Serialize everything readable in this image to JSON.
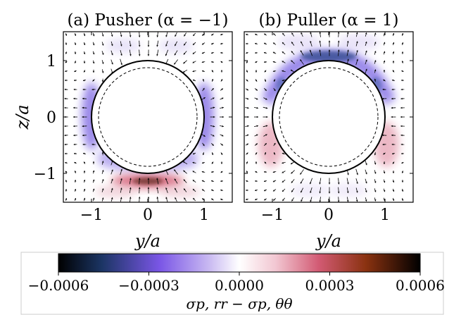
{
  "chart_data": [
    {
      "type": "heatmap",
      "title": "(a) Pusher (α = −1)",
      "xlabel": "y/a",
      "ylabel": "z/a",
      "xlim": [
        -1.5,
        1.5
      ],
      "ylim": [
        -1.5,
        1.5
      ],
      "xticks": [
        "−1",
        "0",
        "1"
      ],
      "yticks": [
        "1",
        "0",
        "−1"
      ],
      "outer_circle_radius": 1.0,
      "inner_dashed_circle_radius": 0.88,
      "quiver": true,
      "features": [
        {
          "region": "left flank of outer circle",
          "value": -0.00028
        },
        {
          "region": "right flank of outer circle",
          "value": -0.00028
        },
        {
          "region": "lower cap below circle",
          "value": -0.00025
        },
        {
          "region": "band below circle near z=-1.1",
          "value": 0.00045
        },
        {
          "region": "far-field faint lobes",
          "value": -5e-05
        }
      ]
    },
    {
      "type": "heatmap",
      "title": "(b) Puller (α = 1)",
      "xlabel": "y/a",
      "ylabel": "",
      "xlim": [
        -1.5,
        1.5
      ],
      "ylim": [
        -1.5,
        1.5
      ],
      "xticks": [
        "−1",
        "0",
        "1"
      ],
      "outer_circle_radius": 1.0,
      "inner_dashed_circle_radius": 0.88,
      "quiver": true,
      "features": [
        {
          "region": "top cap of outer circle",
          "value": -0.00035
        },
        {
          "region": "upper flanks of outer circle",
          "value": -0.00025
        },
        {
          "region": "lower flanks of outer circle",
          "value": 0.00015
        },
        {
          "region": "far-field faint lobes",
          "value": -4e-05
        }
      ]
    }
  ],
  "colorbar": {
    "label": "σp, rr − σp, θθ",
    "range": [
      -0.0006,
      0.0006
    ],
    "ticks": [
      "−0.0006",
      "−0.0003",
      "0.0000",
      "0.0003",
      "0.0006"
    ],
    "colormap": "dark-blue-purple-white-pink-red-black"
  }
}
